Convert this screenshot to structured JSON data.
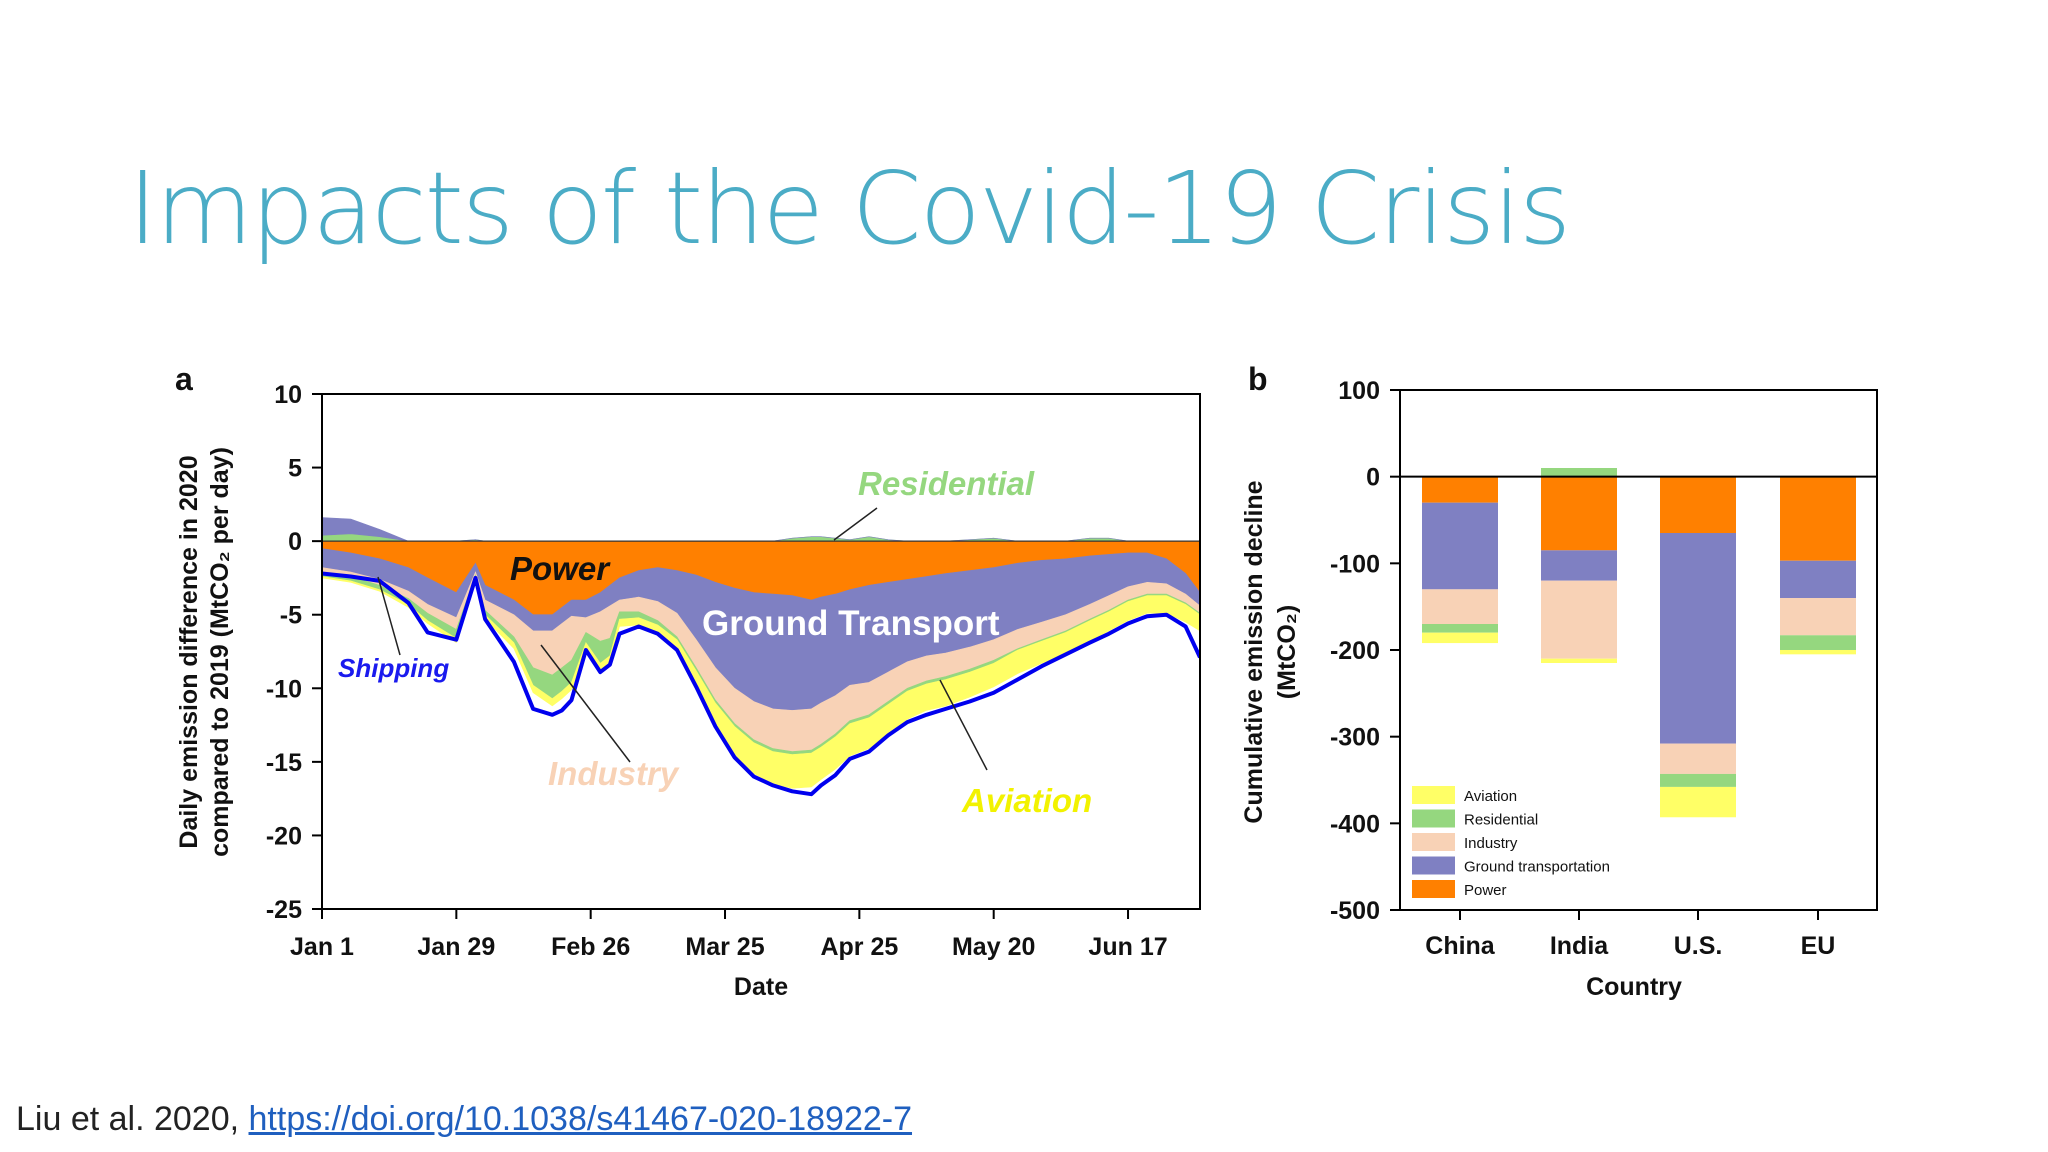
{
  "slide": {
    "title": "Impacts of the Covid-19 Crisis",
    "citation_prefix": "Liu et al. 2020, ",
    "citation_link": "https://doi.org/10.1038/s41467-020-18922-7"
  },
  "colors": {
    "title": "#4bacc6",
    "power": "#ff8000",
    "ground": "#7f80c2",
    "industry": "#f8d2b6",
    "residential": "#95d77f",
    "aviation": "#ffff66",
    "shipping": "#0000ee"
  },
  "chart_data": [
    {
      "panel": "a",
      "type": "area",
      "xlabel": "Date",
      "ylabel_line1": "Daily emission difference in 2020",
      "ylabel_line2": "compared to 2019 (MtCO₂ per day)",
      "ylim": [
        -25,
        10
      ],
      "yticks": [
        10,
        5,
        0,
        -5,
        -10,
        -15,
        -20,
        -25
      ],
      "xlim": [
        0,
        183
      ],
      "xticks": [
        {
          "day": 0,
          "label": "Jan 1"
        },
        {
          "day": 28,
          "label": "Jan 29"
        },
        {
          "day": 56,
          "label": "Feb 26"
        },
        {
          "day": 84,
          "label": "Mar 25"
        },
        {
          "day": 112,
          "label": "Apr 25"
        },
        {
          "day": 140,
          "label": "May 20"
        },
        {
          "day": 168,
          "label": "Jun 17"
        }
      ],
      "days": [
        0,
        6,
        12,
        18,
        22,
        28,
        32,
        34,
        40,
        44,
        48,
        50,
        52,
        55,
        58,
        60,
        62,
        66,
        70,
        74,
        78,
        82,
        86,
        90,
        94,
        98,
        102,
        104,
        107,
        110,
        114,
        118,
        122,
        126,
        130,
        135,
        140,
        145,
        150,
        155,
        160,
        164,
        168,
        172,
        176,
        180,
        183
      ],
      "positive_series": [
        {
          "name": "Residential",
          "values": [
            0.4,
            0.5,
            0.3,
            0,
            0,
            0,
            0.1,
            0,
            0,
            0,
            0,
            0,
            0,
            0,
            0,
            0,
            0,
            0,
            0,
            0,
            0,
            0,
            0,
            0,
            0,
            0.2,
            0.3,
            0.3,
            0.2,
            0.1,
            0.3,
            0.1,
            0,
            0,
            0,
            0.1,
            0.2,
            0,
            0,
            0,
            0.2,
            0.2,
            0,
            0,
            0,
            0,
            0
          ]
        },
        {
          "name": "Ground Transport",
          "values": [
            1.2,
            1.0,
            0.5,
            0,
            0,
            0,
            0,
            0,
            0,
            0,
            0,
            0,
            0,
            0,
            0,
            0,
            0,
            0,
            0,
            0,
            0,
            0,
            0,
            0,
            0,
            0,
            0,
            0,
            0,
            0,
            0,
            0,
            0,
            0,
            0,
            0,
            0,
            0,
            0,
            0,
            0,
            0,
            0,
            0,
            0,
            0,
            0
          ]
        }
      ],
      "negative_series": [
        {
          "name": "Power",
          "values": [
            -0.5,
            -0.8,
            -1.2,
            -1.8,
            -2.5,
            -3.5,
            -1.5,
            -3,
            -4,
            -5,
            -5,
            -4.5,
            -4,
            -4,
            -3.5,
            -3,
            -2.5,
            -2,
            -1.8,
            -2,
            -2.3,
            -2.8,
            -3.2,
            -3.5,
            -3.6,
            -3.7,
            -4,
            -3.8,
            -3.6,
            -3.3,
            -3,
            -2.8,
            -2.6,
            -2.4,
            -2.2,
            -2,
            -1.8,
            -1.5,
            -1.3,
            -1.2,
            -1,
            -0.9,
            -0.8,
            -0.8,
            -1.2,
            -2.2,
            -3.5
          ]
        },
        {
          "name": "Ground Transport",
          "values": [
            -1.3,
            -1.3,
            -1.4,
            -1.6,
            -1.8,
            -1.7,
            -0.6,
            -1,
            -1,
            -1.1,
            -1.1,
            -1.1,
            -1.1,
            -1.2,
            -1.3,
            -1.4,
            -1.5,
            -1.8,
            -2.3,
            -2.9,
            -4.4,
            -5.8,
            -6.8,
            -7.4,
            -7.8,
            -7.8,
            -7.4,
            -7.2,
            -6.9,
            -6.5,
            -6.6,
            -6.1,
            -5.6,
            -5.4,
            -5.4,
            -5.2,
            -4.9,
            -4.5,
            -4.2,
            -3.8,
            -3.3,
            -2.8,
            -2.3,
            -2,
            -1.7,
            -1.4,
            -0.9
          ]
        },
        {
          "name": "Industry",
          "values": [
            -0.3,
            -0.3,
            -0.4,
            -0.5,
            -0.6,
            -0.8,
            -0.2,
            -0.7,
            -1.5,
            -2.5,
            -3,
            -3,
            -3,
            -1,
            -2,
            -2.2,
            -0.8,
            -1,
            -1.3,
            -1.6,
            -1.9,
            -2.2,
            -2.4,
            -2.6,
            -2.7,
            -2.8,
            -2.8,
            -2.8,
            -2.6,
            -2.4,
            -2.2,
            -2,
            -1.8,
            -1.7,
            -1.6,
            -1.5,
            -1.4,
            -1.3,
            -1.2,
            -1.1,
            -1,
            -1,
            -0.9,
            -0.8,
            -0.7,
            -0.6,
            -0.5
          ]
        },
        {
          "name": "Residential",
          "values": [
            -0.3,
            -0.3,
            -0.3,
            -0.4,
            -0.5,
            -0.6,
            -0.2,
            -0.3,
            -0.4,
            -1.2,
            -1.6,
            -1.6,
            -1.5,
            -0.7,
            -1.5,
            -1.2,
            -0.5,
            -0.4,
            -0.3,
            -0.2,
            -0.2,
            -0.2,
            -0.2,
            -0.2,
            -0.2,
            -0.2,
            -0.2,
            -0.2,
            -0.2,
            -0.2,
            -0.2,
            -0.2,
            -0.2,
            -0.2,
            -0.2,
            -0.2,
            -0.2,
            -0.1,
            -0.1,
            -0.1,
            -0.1,
            -0.1,
            -0.1,
            -0.1,
            -0.1,
            -0.1,
            -0.1
          ]
        },
        {
          "name": "Aviation",
          "values": [
            -0.1,
            -0.1,
            -0.1,
            -0.2,
            -0.2,
            -0.3,
            -0.1,
            -0.3,
            -0.4,
            -0.5,
            -0.5,
            -0.5,
            -0.5,
            -0.5,
            -0.5,
            -0.5,
            -0.5,
            -0.5,
            -0.5,
            -0.6,
            -1,
            -1.5,
            -1.9,
            -2.1,
            -2.2,
            -2.3,
            -2.3,
            -2.2,
            -2.2,
            -2.2,
            -2.1,
            -2,
            -1.9,
            -1.8,
            -1.8,
            -1.7,
            -1.6,
            -1.6,
            -1.5,
            -1.4,
            -1.4,
            -1.3,
            -1.3,
            -1.2,
            -1.2,
            -1.2,
            -1.1
          ]
        }
      ],
      "shipping_total": [
        -2.2,
        -2.4,
        -2.7,
        -4.2,
        -6.2,
        -6.7,
        -2.5,
        -5.3,
        -8.2,
        -11.4,
        -11.8,
        -11.5,
        -10.8,
        -7.4,
        -8.9,
        -8.4,
        -6.3,
        -5.8,
        -6.3,
        -7.4,
        -9.9,
        -12.6,
        -14.7,
        -16,
        -16.6,
        -17,
        -17.2,
        -16.6,
        -15.9,
        -14.8,
        -14.3,
        -13.2,
        -12.3,
        -11.8,
        -11.4,
        -10.9,
        -10.3,
        -9.4,
        -8.5,
        -7.7,
        -6.9,
        -6.3,
        -5.6,
        -5.1,
        -5,
        -5.8,
        -7.9
      ],
      "annotations": [
        "Residential",
        "Power",
        "Ground Transport",
        "Shipping",
        "Industry",
        "Aviation"
      ]
    },
    {
      "panel": "b",
      "type": "bar",
      "stacked": true,
      "xlabel": "Country",
      "ylabel_line1": "Cumulative emission decline",
      "ylabel_line2": "(MtCO₂)",
      "ylim": [
        -500,
        100
      ],
      "yticks": [
        100,
        0,
        -100,
        -200,
        -300,
        -400,
        -500
      ],
      "categories": [
        "China",
        "India",
        "U.S.",
        "EU"
      ],
      "stack_order": [
        "Power",
        "Ground transportation",
        "Industry",
        "Residential",
        "Aviation"
      ],
      "series": [
        {
          "name": "Power",
          "values": [
            -30,
            -85,
            -65,
            -97
          ]
        },
        {
          "name": "Ground transportation",
          "values": [
            -100,
            -35,
            -243,
            -43
          ]
        },
        {
          "name": "Industry",
          "values": [
            -40,
            -90,
            -35,
            -43
          ]
        },
        {
          "name": "Residential",
          "values": [
            -10,
            10,
            -15,
            -17
          ]
        },
        {
          "name": "Aviation",
          "values": [
            -12,
            -5,
            -35,
            -5
          ]
        }
      ],
      "legend": [
        "Aviation",
        "Residential",
        "Industry",
        "Ground transportation",
        "Power"
      ],
      "legend_position": "bottom-left"
    }
  ]
}
